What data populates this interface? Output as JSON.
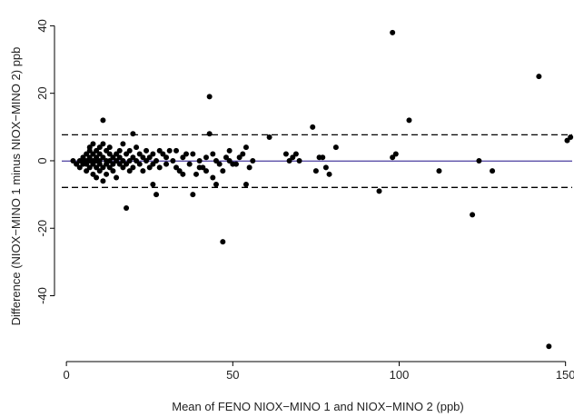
{
  "chart_data": {
    "type": "scatter",
    "x_label": "Mean of FENO NIOX−MINO 1 and NIOX−MINO 2 (ppb)",
    "y_label": "Difference (NIOX−MINO 1 minus NIOX−MINO 2)  ppb",
    "xlim": [
      -1.4,
      152
    ],
    "ylim": [
      -57.9,
      42.8
    ],
    "xticks": [
      0,
      50,
      100,
      150
    ],
    "yticks": [
      -40,
      -20,
      0,
      20,
      40
    ],
    "color": "#000000",
    "reference_lines": [
      {
        "value": 7.7,
        "style": "dashed",
        "color": "#000000"
      },
      {
        "value": -0.1,
        "style": "solid",
        "color": "#5b4fa8"
      },
      {
        "value": -7.9,
        "style": "dashed",
        "color": "#000000"
      }
    ],
    "x": [
      98,
      142,
      43,
      103,
      11,
      74,
      43,
      20,
      61,
      151.5,
      150.5,
      99,
      98,
      81,
      78,
      75,
      76,
      77,
      79,
      94,
      112,
      124,
      122,
      128,
      145,
      47,
      18,
      38,
      27,
      26,
      45,
      54,
      54,
      48,
      44,
      41,
      66,
      68,
      70,
      69,
      67,
      56,
      52,
      50,
      36,
      33,
      30,
      31,
      28,
      35,
      40,
      39,
      42,
      46,
      49,
      2,
      3,
      4,
      4,
      5,
      5,
      5,
      6,
      6,
      6,
      6,
      7,
      7,
      7,
      7,
      7,
      8,
      8,
      8,
      8,
      8,
      9,
      9,
      9,
      9,
      9,
      10,
      10,
      10,
      10,
      10,
      11,
      11,
      11,
      11,
      12,
      12,
      12,
      12,
      13,
      13,
      13,
      13,
      14,
      14,
      14,
      15,
      15,
      15,
      16,
      16,
      16,
      17,
      17,
      17,
      18,
      18,
      19,
      19,
      19,
      20,
      20,
      21,
      21,
      22,
      22,
      23,
      23,
      24,
      24,
      25,
      25,
      26,
      26,
      27,
      28,
      29,
      30,
      32,
      33,
      34,
      35,
      37,
      38,
      40,
      42,
      44,
      45,
      47,
      49,
      51,
      53,
      55
    ],
    "y": [
      38,
      25,
      19,
      12,
      12,
      10,
      8,
      8,
      7,
      7,
      6,
      2,
      1,
      4,
      -2,
      -3,
      1,
      1,
      -4,
      -9,
      -3,
      0,
      -16,
      -3,
      -55,
      -24,
      -14,
      -10,
      -10,
      -7,
      -7,
      -7,
      4,
      1,
      -5,
      -2,
      2,
      1,
      0,
      2,
      0,
      0,
      1,
      -1,
      2,
      -2,
      1,
      3,
      3,
      -4,
      0,
      -4,
      -3,
      -1,
      3,
      0,
      -1,
      0,
      -2,
      1,
      -1,
      0,
      2,
      -1,
      0,
      -3,
      1,
      3,
      -2,
      0,
      4,
      -1,
      2,
      0,
      -4,
      5,
      1,
      -2,
      3,
      0,
      -5,
      2,
      -1,
      4,
      0,
      -3,
      1,
      -2,
      5,
      -6,
      0,
      3,
      -1,
      -4,
      2,
      -2,
      0,
      4,
      1,
      -3,
      -1,
      2,
      0,
      -5,
      3,
      -1,
      1,
      0,
      -2,
      5,
      2,
      -1,
      0,
      3,
      -3,
      1,
      -2,
      4,
      0,
      -1,
      2,
      1,
      -3,
      0,
      3,
      -2,
      1,
      2,
      -1,
      0,
      -2,
      2,
      -1,
      0,
      3,
      -3,
      1,
      -1,
      2,
      -2,
      1,
      2,
      0,
      -3,
      0,
      -1,
      2,
      -2
    ]
  }
}
